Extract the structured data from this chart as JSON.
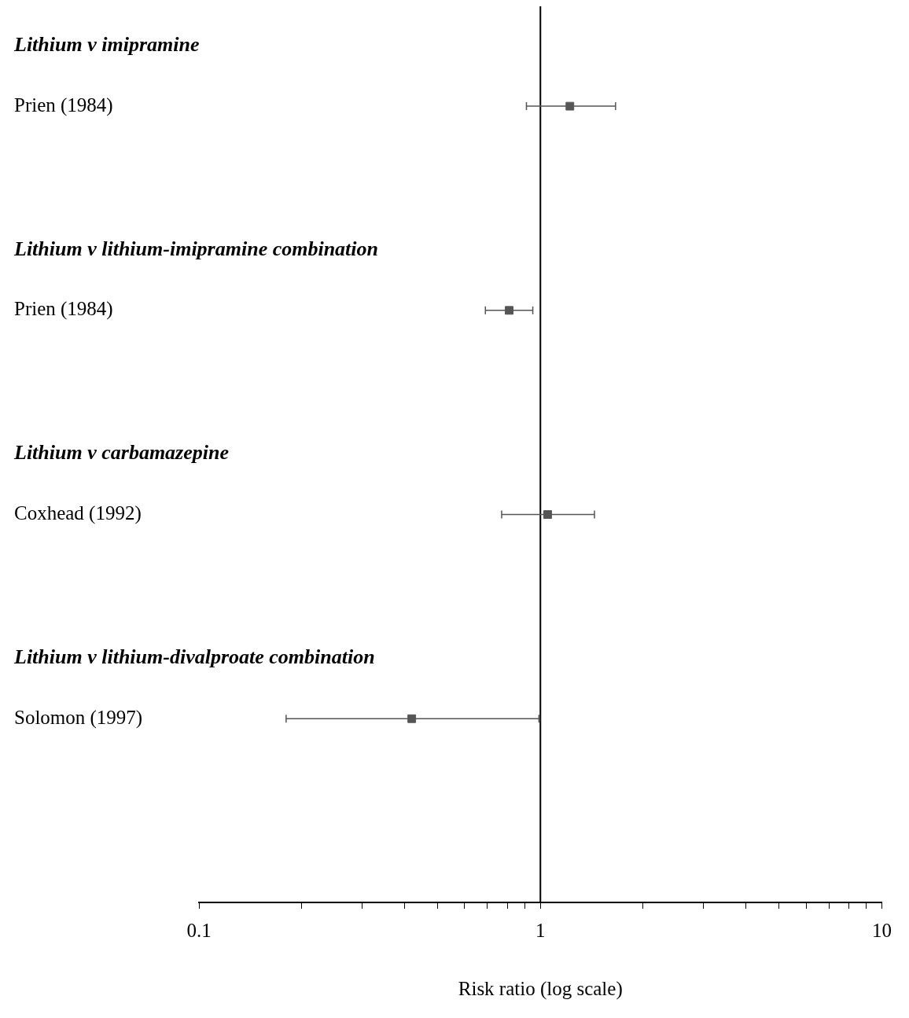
{
  "chart_data": {
    "type": "scatter",
    "orientation": "horizontal",
    "xlabel": "Risk ratio (log scale)",
    "categories": [
      "Prien (1984)",
      "Prien (1984)",
      "Coxhead (1992)",
      "Solomon (1997)"
    ],
    "values": [
      1.22,
      0.81,
      1.05,
      0.42
    ],
    "errors": [
      [
        0.91,
        1.66
      ],
      [
        0.69,
        0.95
      ],
      [
        0.77,
        1.44
      ],
      [
        0.18,
        0.99
      ]
    ],
    "color": "#555555",
    "marker": "square",
    "log": "x",
    "xlim": [
      0.1,
      10
    ],
    "xticks": [
      0.1,
      {
        "value": 0.2,
        "label": null
      },
      {
        "value": 0.3,
        "label": null
      },
      {
        "value": 0.4,
        "label": null
      },
      {
        "value": 0.5,
        "label": null
      },
      {
        "value": 0.6,
        "label": null
      },
      {
        "value": 0.7,
        "label": null
      },
      {
        "value": 0.8,
        "label": null
      },
      {
        "value": 0.9,
        "label": null
      },
      1,
      {
        "value": 2,
        "label": null
      },
      {
        "value": 3,
        "label": null
      },
      {
        "value": 4,
        "label": null
      },
      {
        "value": 5,
        "label": null
      },
      {
        "value": 6,
        "label": null
      },
      {
        "value": 7,
        "label": null
      },
      {
        "value": 8,
        "label": null
      },
      {
        "value": 9,
        "label": null
      },
      10
    ],
    "ref_lines": [
      {
        "axis": "x",
        "value": 1,
        "color": "#000000"
      }
    ],
    "annotations": [
      "Lithium v imipramine",
      "Lithium v lithium-imipramine combination",
      "Lithium v carbamazepine",
      "Lithium v lithium-divalproate combination"
    ],
    "grid": false,
    "legend": false
  }
}
